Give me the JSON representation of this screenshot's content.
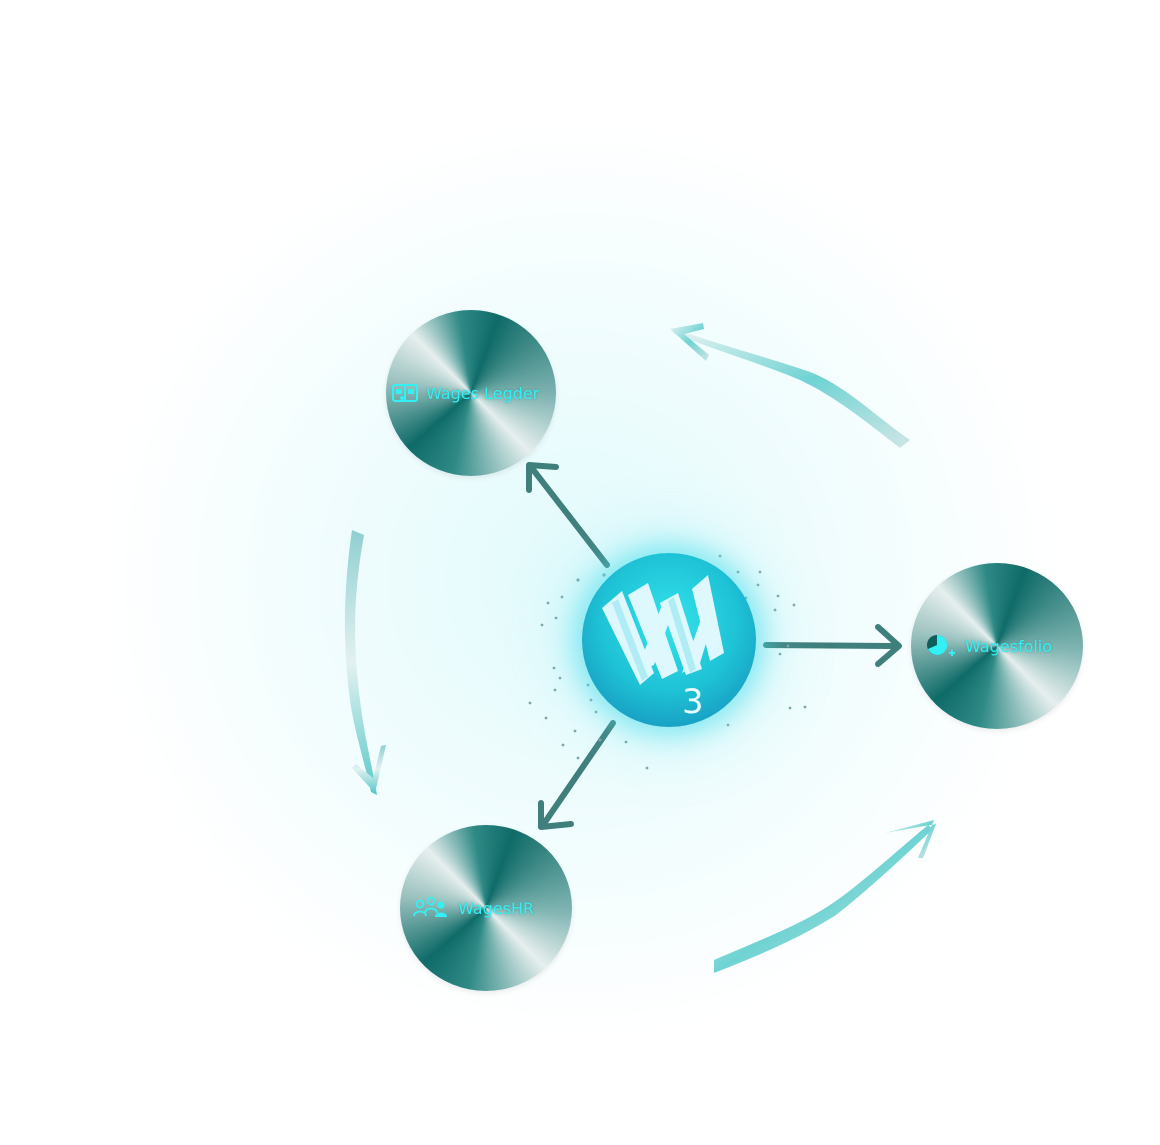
{
  "diagram": {
    "hub": {
      "icon": "w3-logo-icon",
      "subscript": "3"
    },
    "nodes": [
      {
        "id": "ledger",
        "label": "Wages Legder",
        "icon": "ledger-icon"
      },
      {
        "id": "folio",
        "label": "Wagesfolio",
        "icon": "pie-chart-icon"
      },
      {
        "id": "hr",
        "label": "WagesHR",
        "icon": "people-icon"
      }
    ],
    "colors": {
      "label": "#33f0f5",
      "arrow": "#3f7f7c",
      "hub": "#1ec3d6",
      "node_dark": "#0f6b68",
      "node_light": "#e6efee"
    }
  }
}
